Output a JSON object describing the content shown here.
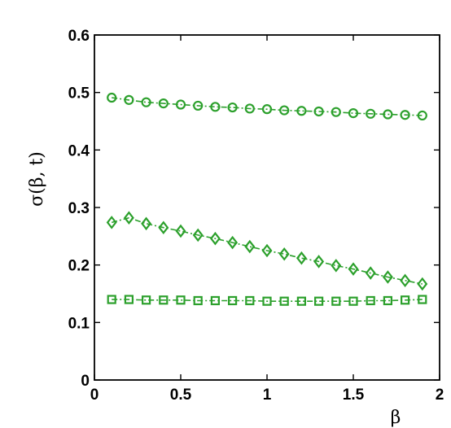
{
  "chart_data": {
    "type": "line",
    "title": "",
    "xlabel": "β",
    "ylabel": "σ(β, t)",
    "xlim": [
      0,
      2
    ],
    "ylim": [
      0,
      0.6
    ],
    "xticks": [
      0,
      0.5,
      1,
      1.5,
      2
    ],
    "xtick_labels": [
      "0",
      "0.5",
      "1",
      "1.5",
      "2"
    ],
    "yticks": [
      0,
      0.1,
      0.2,
      0.3,
      0.4,
      0.5,
      0.6
    ],
    "ytick_labels": [
      "0",
      "0.1",
      "0.2",
      "0.3",
      "0.4",
      "0.5",
      "0.6"
    ],
    "grid": false,
    "legend": "none",
    "color": "#2ca02c",
    "x": [
      0.1,
      0.2,
      0.3,
      0.4,
      0.5,
      0.6,
      0.7,
      0.8,
      0.9,
      1.0,
      1.1,
      1.2,
      1.3,
      1.4,
      1.5,
      1.6,
      1.7,
      1.8,
      1.9
    ],
    "series": [
      {
        "marker": "circle",
        "values": [
          0.491,
          0.487,
          0.483,
          0.481,
          0.479,
          0.477,
          0.475,
          0.474,
          0.472,
          0.471,
          0.469,
          0.468,
          0.467,
          0.466,
          0.464,
          0.463,
          0.462,
          0.461,
          0.46
        ]
      },
      {
        "marker": "diamond",
        "values": [
          0.274,
          0.282,
          0.272,
          0.265,
          0.259,
          0.252,
          0.246,
          0.239,
          0.232,
          0.225,
          0.219,
          0.212,
          0.206,
          0.199,
          0.193,
          0.186,
          0.179,
          0.173,
          0.167
        ]
      },
      {
        "marker": "square",
        "values": [
          0.14,
          0.14,
          0.139,
          0.139,
          0.139,
          0.138,
          0.138,
          0.138,
          0.138,
          0.137,
          0.137,
          0.137,
          0.137,
          0.137,
          0.137,
          0.138,
          0.138,
          0.139,
          0.14
        ]
      }
    ]
  }
}
